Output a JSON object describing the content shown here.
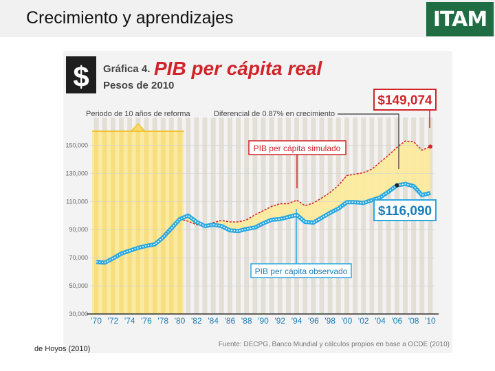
{
  "slide": {
    "title": "Crecimiento y aprendizajes",
    "logo_text": "ITAM",
    "citation": "de Hoyos (2010)"
  },
  "chart_data": {
    "type": "line",
    "badge_symbol": "$",
    "title_prefix": "Gráfica 4.",
    "title": "PIB per cápita real",
    "subtitle": "Pesos de 2010",
    "source": "Fuente: DECPG, Banco Mundial y cálculos propios en base a OCDE (2010)",
    "x_ticks": [
      "'70",
      "'72",
      "'74",
      "'76",
      "'78",
      "'80",
      "'82",
      "'84",
      "'86",
      "'88",
      "'90",
      "'92",
      "'94",
      "'96",
      "'98",
      "'00",
      "'02",
      "'04",
      "'06",
      "'08",
      "'10"
    ],
    "y_ticks": [
      "30,000",
      "50,000",
      "70,000",
      "90,000",
      "110,000",
      "130,000",
      "150,000"
    ],
    "ylim": [
      30000,
      160000
    ],
    "xlim": [
      1969.5,
      2010.5
    ],
    "reform_period": {
      "start": 1970,
      "end": 1980,
      "label": "Periodo de 10 años de reforma"
    },
    "differential_label": "Diferencial de 0.87% en crecimiento",
    "series": [
      {
        "name": "PIB per cápita simulado",
        "color": "#d2232a",
        "end_label": "$149,074",
        "x": [
          1980,
          1981,
          1982,
          1983,
          1984,
          1985,
          1986,
          1987,
          1988,
          1989,
          1990,
          1991,
          1992,
          1993,
          1994,
          1995,
          1996,
          1997,
          1998,
          1999,
          2000,
          2001,
          2002,
          2003,
          2004,
          2005,
          2006,
          2007,
          2008,
          2009,
          2010
        ],
        "y": [
          97500,
          96000,
          93500,
          93000,
          95000,
          96500,
          95500,
          95500,
          97000,
          100500,
          103500,
          106500,
          108500,
          108500,
          111000,
          107000,
          109000,
          112500,
          116500,
          121500,
          128500,
          129500,
          130500,
          133000,
          138000,
          143000,
          148500,
          153000,
          152500,
          146500,
          149074
        ]
      },
      {
        "name": "PIB per cápita observado",
        "color": "#29a8e0",
        "end_label": "$116,090",
        "x": [
          1970,
          1971,
          1972,
          1973,
          1974,
          1975,
          1976,
          1977,
          1978,
          1979,
          1980,
          1981,
          1982,
          1983,
          1984,
          1985,
          1986,
          1987,
          1988,
          1989,
          1990,
          1991,
          1992,
          1993,
          1994,
          1995,
          1996,
          1997,
          1998,
          1999,
          2000,
          2001,
          2002,
          2003,
          2004,
          2005,
          2006,
          2007,
          2008,
          2009,
          2010
        ],
        "y": [
          67000,
          66500,
          69500,
          73000,
          75000,
          77000,
          78500,
          79500,
          84500,
          91000,
          97500,
          100000,
          95500,
          92500,
          93500,
          92500,
          89500,
          89000,
          90500,
          91500,
          94500,
          97000,
          97500,
          99000,
          100500,
          95500,
          95000,
          98500,
          102000,
          105000,
          109500,
          109500,
          109000,
          111000,
          113000,
          117000,
          121500,
          122500,
          121000,
          114500,
          116090
        ]
      }
    ]
  }
}
